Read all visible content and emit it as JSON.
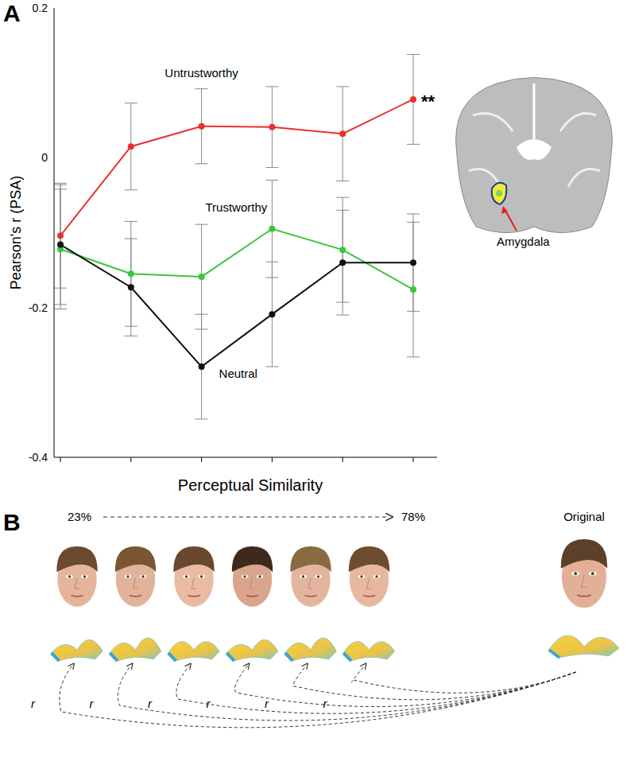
{
  "chart_data": {
    "type": "line",
    "y_label": "Pearson's r (PSA)",
    "categories": [
      null,
      null,
      null,
      null,
      null,
      null
    ],
    "ylim": [
      -0.4,
      0.2
    ],
    "yticks": [
      0.2,
      0,
      -0.2,
      -0.4
    ],
    "grid": false,
    "tick_labels": "y",
    "series": [
      {
        "name": "Untrustworthy",
        "color": "#e8312f",
        "marker": "circle",
        "values": [
          -0.104,
          0.015,
          0.042,
          0.041,
          0.032,
          0.078
        ],
        "errors": [
          0.07,
          0.058,
          0.05,
          0.054,
          0.063,
          0.06
        ],
        "annotation": "**"
      },
      {
        "name": "Trustworthy",
        "color": "#3cc43c",
        "marker": "circle",
        "values": [
          -0.122,
          -0.155,
          -0.159,
          -0.095,
          -0.123,
          -0.176
        ],
        "errors": [
          0.08,
          0.07,
          0.07,
          0.065,
          0.07,
          0.09
        ]
      },
      {
        "name": "Neutral",
        "color": "#111111",
        "marker": "circle",
        "values": [
          -0.116,
          -0.173,
          -0.279,
          -0.209,
          -0.14,
          -0.14
        ],
        "errors": [
          0.08,
          0.065,
          0.07,
          0.07,
          0.07,
          0.065
        ]
      }
    ]
  },
  "figure": {
    "panel_labels": [
      "A",
      "B"
    ],
    "brain_label": "Amygdala",
    "similarity": {
      "title": "Perceptual Similarity",
      "start": "23%",
      "end": "78%",
      "original": "Original",
      "correlation_labels": [
        "r",
        "r",
        "r",
        "r",
        "r",
        "r"
      ]
    }
  }
}
